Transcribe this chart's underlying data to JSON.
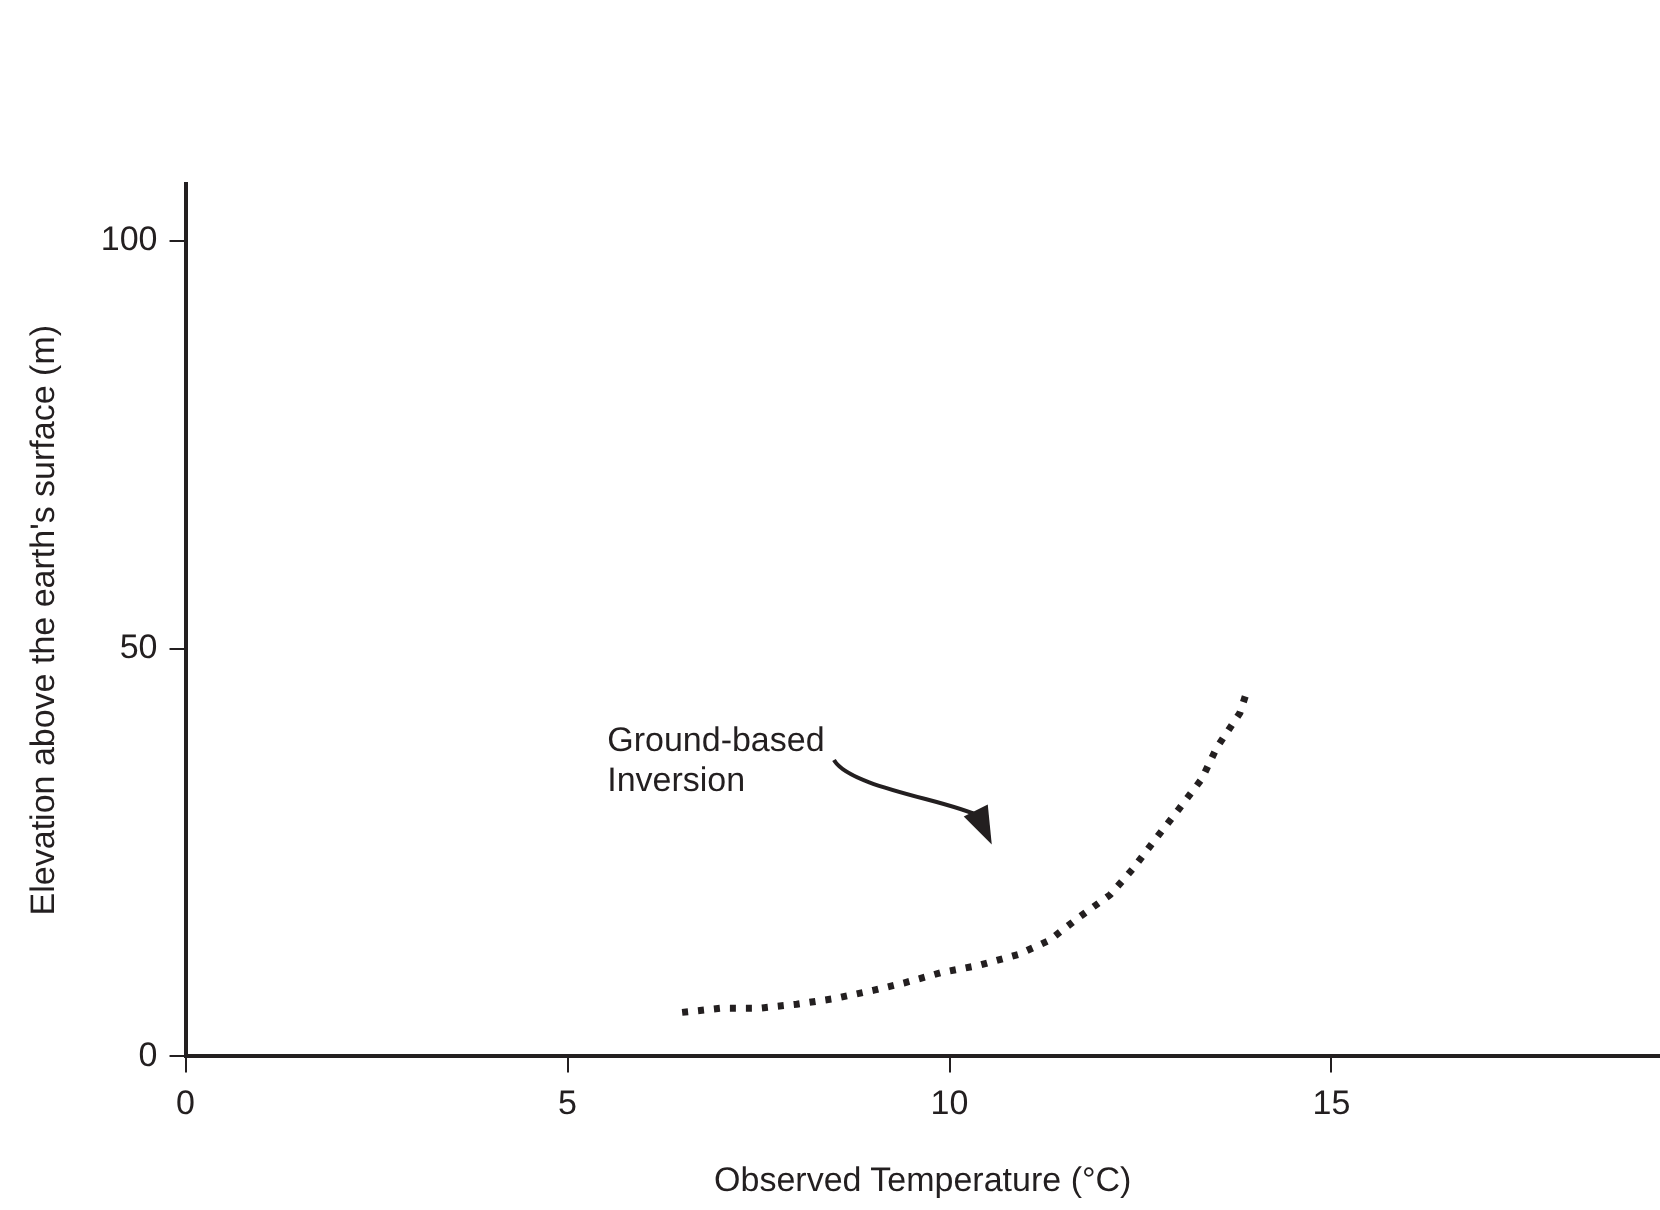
{
  "chart_data": {
    "type": "line",
    "xlabel": "Observed Temperature (°C)",
    "ylabel": "Elevation above the earth's surface (m)",
    "xlim": [
      0,
      19.3
    ],
    "xticks": [
      0,
      5,
      10,
      15
    ],
    "ylim": [
      0,
      107
    ],
    "yticks": [
      0,
      50,
      100
    ],
    "series": [
      {
        "color": "#231f20",
        "line_style": "dotted",
        "x": [
          6.5,
          7.0,
          7.5,
          8.0,
          8.5,
          9.0,
          9.4,
          9.9,
          10.4,
          10.9,
          11.3,
          11.7,
          12.1,
          12.4,
          12.7,
          13.0,
          13.3,
          13.5,
          13.8,
          13.9
        ],
        "values": [
          5.4,
          5.9,
          5.9,
          6.4,
          7.1,
          8.1,
          9.0,
          10.3,
          11.2,
          12.5,
          14.2,
          17.1,
          19.8,
          23.0,
          26.7,
          30.3,
          34.0,
          37.9,
          42.1,
          45.0
        ]
      }
    ],
    "annotations": [
      "Ground-based\nInversion"
    ],
    "grid": false,
    "legend": false,
    "marker": "none"
  }
}
